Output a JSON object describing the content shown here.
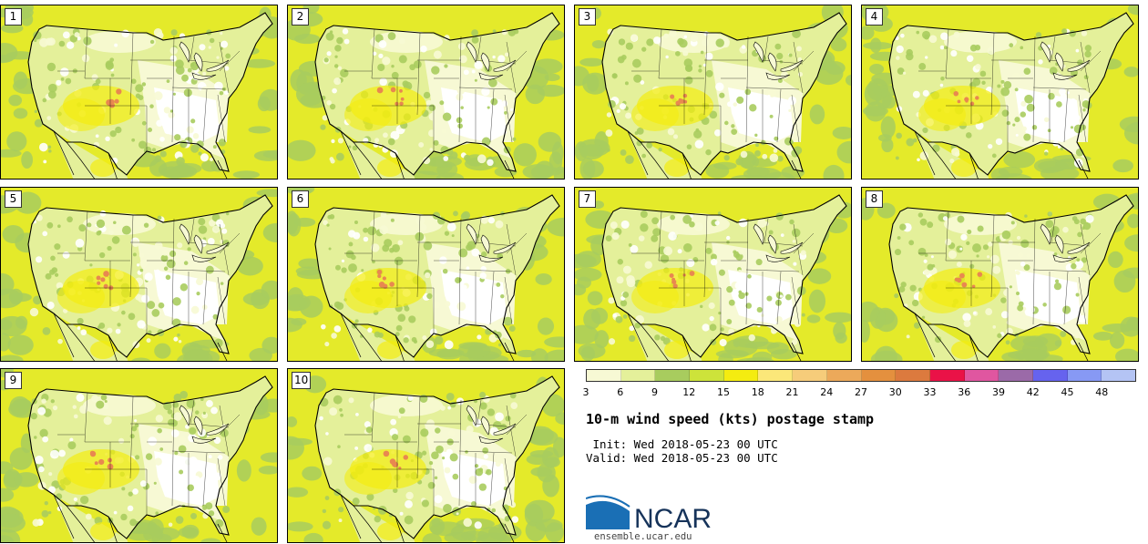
{
  "figure": {
    "title": "10-m wind speed (kts) postage stamp",
    "init_text": " Init: Wed 2018-05-23 00 UTC",
    "valid_text": "Valid: Wed 2018-05-23 00 UTC",
    "logo_text": "NCAR",
    "site": "ensemble.ucar.edu"
  },
  "members": [
    {
      "label": "1"
    },
    {
      "label": "2"
    },
    {
      "label": "3"
    },
    {
      "label": "4"
    },
    {
      "label": "5"
    },
    {
      "label": "6"
    },
    {
      "label": "7"
    },
    {
      "label": "8"
    },
    {
      "label": "9"
    },
    {
      "label": "10"
    }
  ],
  "colorbar": {
    "ticks": [
      "3",
      "6",
      "9",
      "12",
      "15",
      "18",
      "21",
      "24",
      "27",
      "30",
      "33",
      "36",
      "39",
      "42",
      "45",
      "48"
    ],
    "colors": [
      "#f7f9d4",
      "#e4f09a",
      "#a8cc5e",
      "#cde33a",
      "#f4ec10",
      "#fbe779",
      "#f6cc7a",
      "#eca95a",
      "#e4903e",
      "#dc7a3e",
      "#ea1247",
      "#e056a0",
      "#9b6aa8",
      "#6663ee",
      "#8799f4",
      "#b4c4f4"
    ]
  },
  "colors": {
    "calm": "#ffffff",
    "light": "#f7f9d4",
    "moderate": "#e4f09a",
    "green": "#a8cc5e",
    "strong": "#e4ea2a",
    "yellow": "#f4ec10",
    "peak": "#e88850",
    "boundary": "#000000",
    "logo_blue": "#1a6fb5",
    "logo_text": "#16335a"
  }
}
